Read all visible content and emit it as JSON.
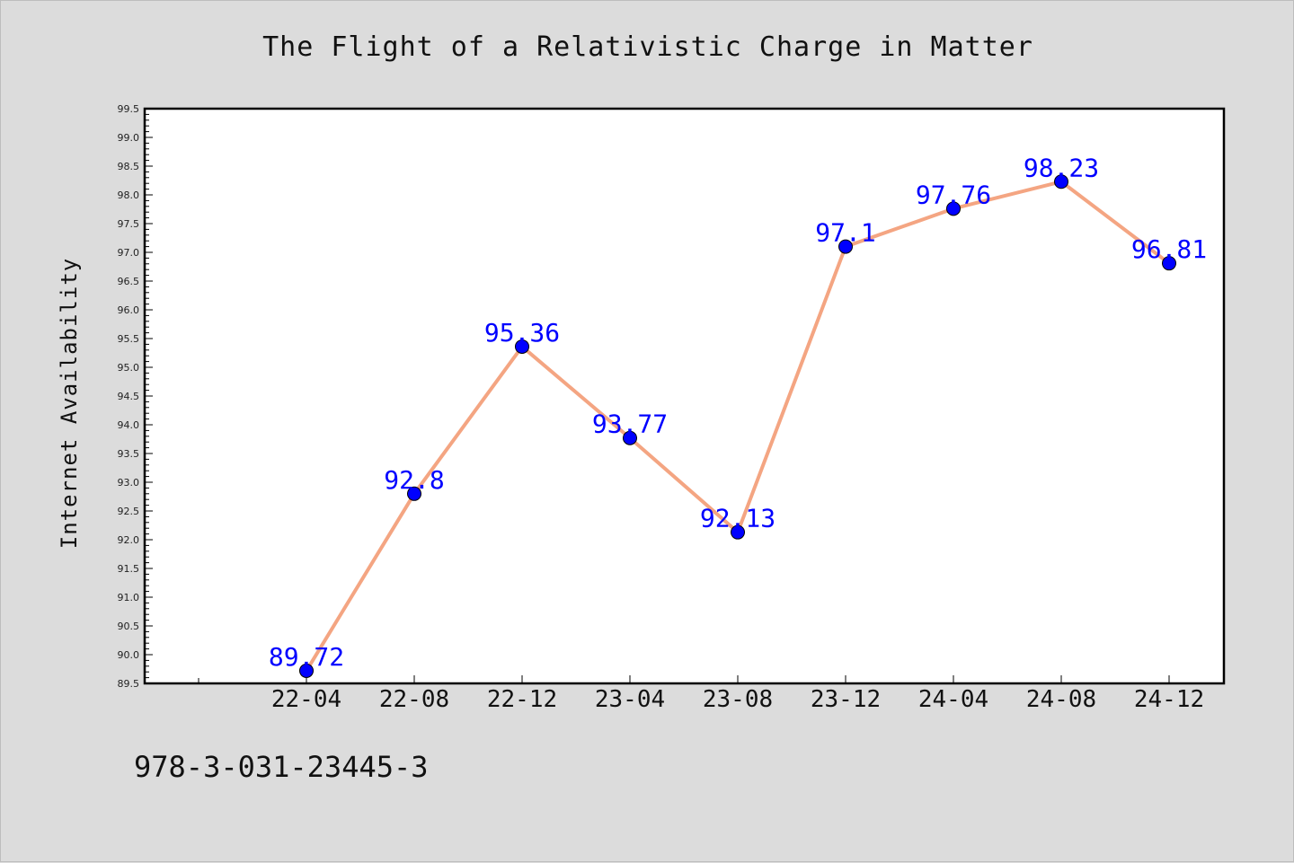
{
  "chart_data": {
    "type": "line",
    "title": "The Flight of a Relativistic Charge in Matter",
    "ylabel": "Internet Availability",
    "xlabel": "",
    "categories": [
      "22-04",
      "22-08",
      "22-12",
      "23-04",
      "23-08",
      "23-12",
      "24-04",
      "24-08",
      "24-12"
    ],
    "values": [
      89.72,
      92.8,
      95.36,
      93.77,
      92.13,
      97.1,
      97.76,
      98.23,
      96.81
    ],
    "data_labels": [
      "89.72",
      "92.8",
      "95.36",
      "93.77",
      "92.13",
      "97.1",
      "97.76",
      "98.23",
      "96.81"
    ],
    "ylim": [
      89.5,
      99.5
    ],
    "y_ticks": [
      "89.5",
      "90.0",
      "90.5",
      "91.0",
      "91.5",
      "92.0",
      "92.5",
      "93.0",
      "93.5",
      "94.0",
      "94.5",
      "95.0",
      "95.5",
      "96.0",
      "96.5",
      "97.0",
      "97.5",
      "98.0",
      "98.5",
      "99.0",
      "99.5"
    ],
    "grid": false,
    "line_color": "#f4a582",
    "marker_color": "#0000ff",
    "label_color": "#0000ff"
  },
  "footer": {
    "code": "978-3-031-23445-3"
  }
}
